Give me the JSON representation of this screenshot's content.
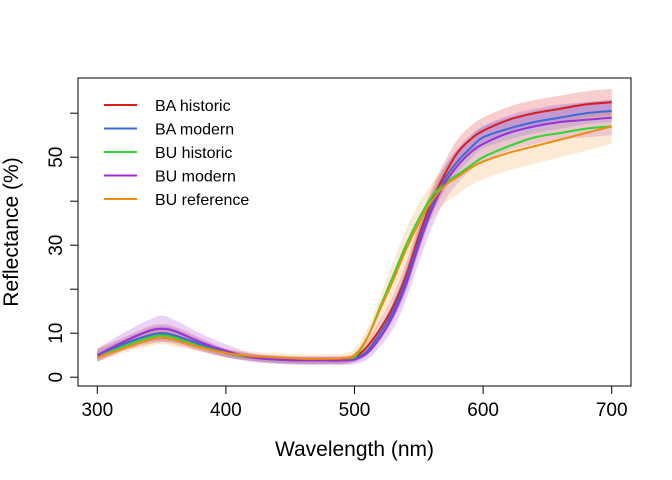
{
  "chart_data": {
    "type": "line",
    "title": "",
    "xlabel": "Wavelength (nm)",
    "ylabel": "Reflectance (%)",
    "xlim": [
      285,
      715
    ],
    "ylim": [
      -2,
      68
    ],
    "x_ticks": [
      300,
      400,
      500,
      600,
      700
    ],
    "y_ticks": [
      0,
      10,
      30,
      50
    ],
    "y_minor_ticks": [
      20,
      40,
      60
    ],
    "grid": false,
    "legend_position": "top-left",
    "x": [
      300,
      320,
      340,
      350,
      360,
      380,
      400,
      420,
      440,
      460,
      480,
      490,
      500,
      510,
      520,
      530,
      540,
      550,
      560,
      570,
      580,
      590,
      600,
      620,
      640,
      660,
      680,
      700
    ],
    "series": [
      {
        "name": "BA historic",
        "color": "#dd1c1c",
        "band_color": "#dd1c1c",
        "values": [
          5,
          7.5,
          9.5,
          10,
          9.5,
          7.5,
          5.5,
          4.5,
          4,
          3.8,
          3.8,
          3.8,
          4.5,
          7,
          11,
          16,
          23,
          32,
          40,
          46,
          51,
          54,
          56,
          58.5,
          60,
          61,
          62,
          62.5
        ],
        "band": [
          1.5,
          1.5,
          2,
          2,
          2,
          1.5,
          1,
          0.8,
          0.8,
          0.8,
          0.8,
          0.8,
          1,
          1.5,
          2,
          2.5,
          3,
          3,
          3,
          3,
          3,
          3,
          3,
          3,
          3,
          3,
          3,
          3
        ]
      },
      {
        "name": "BA modern",
        "color": "#3a6bd6",
        "band_color": "#3a6bd6",
        "values": [
          5,
          7.5,
          9.5,
          10,
          9.5,
          7.5,
          5.5,
          4.5,
          4,
          3.8,
          3.8,
          3.8,
          4.2,
          6,
          10,
          15,
          22,
          31,
          39,
          45,
          49,
          52,
          54.5,
          56.5,
          58,
          59,
          60,
          60.5
        ],
        "band": [
          1,
          1,
          1.5,
          1.5,
          1.5,
          1,
          0.8,
          0.8,
          0.8,
          0.8,
          0.8,
          0.8,
          0.8,
          1,
          1.5,
          2,
          2.5,
          2.5,
          2.5,
          2.5,
          2.5,
          2.5,
          2.5,
          2.5,
          2.5,
          2.5,
          2.5,
          2.5
        ]
      },
      {
        "name": "BU historic",
        "color": "#2ed62e",
        "band_color": "#2ed62e",
        "values": [
          4.5,
          7,
          9,
          9.5,
          9,
          7,
          5.5,
          4.5,
          4,
          3.8,
          3.8,
          3.8,
          4.5,
          9,
          16,
          23,
          30,
          36,
          41,
          44,
          46,
          48,
          50,
          52.5,
          54.5,
          55.5,
          56.5,
          57
        ]
      },
      {
        "name": "BU modern",
        "color": "#9b30d6",
        "band_color": "#9b30d6",
        "values": [
          5,
          8,
          10.5,
          11,
          10.5,
          8,
          6,
          4.5,
          4,
          3.8,
          3.8,
          3.8,
          4,
          5.5,
          9,
          14,
          21,
          30,
          38,
          44,
          48,
          51,
          53,
          55.5,
          57,
          58,
          58.5,
          59
        ],
        "band": [
          1.5,
          2,
          2.5,
          3,
          2.5,
          2,
          1.5,
          1,
          1,
          1,
          1,
          1,
          1,
          1.5,
          2,
          3,
          3.5,
          4,
          4,
          4,
          4,
          4,
          4,
          4,
          4,
          4,
          4,
          4
        ]
      },
      {
        "name": "BU reference",
        "color": "#f08c0c",
        "band_color": "#f7a040",
        "values": [
          4.5,
          6.5,
          8.5,
          9,
          8.5,
          6.8,
          5.5,
          4.8,
          4.5,
          4.2,
          4.2,
          4.3,
          5,
          9,
          15.5,
          22,
          29,
          35,
          40,
          43.5,
          45.5,
          47.5,
          49,
          51,
          52.5,
          54,
          55.5,
          57
        ],
        "band": [
          1,
          1,
          1.5,
          1.5,
          1.5,
          1,
          1,
          1,
          1,
          1,
          1,
          1,
          1.5,
          2,
          3,
          4,
          4.5,
          4.5,
          4,
          4,
          4,
          4,
          4,
          4,
          4,
          4,
          4,
          4
        ]
      }
    ]
  }
}
